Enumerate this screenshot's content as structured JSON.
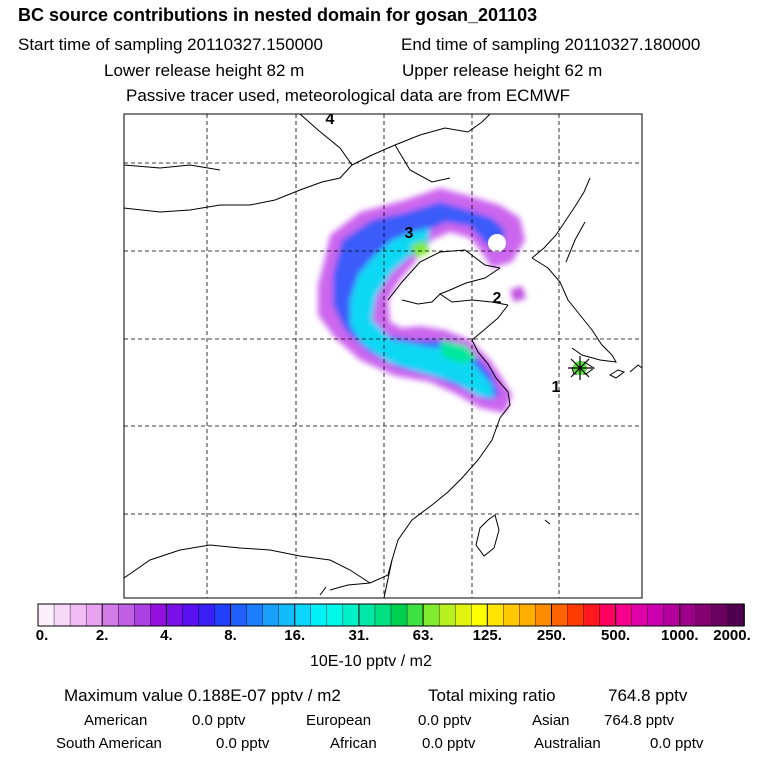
{
  "header": {
    "title": "BC  source contributions in nested domain for gosan_201103",
    "start_label": "Start time of sampling 20110327.150000",
    "end_label": "End time of sampling 20110327.180000",
    "lower_label": "Lower release height   82 m",
    "upper_label": "Upper release height   62 m",
    "tracer_note": "Passive tracer used, meteorological data are from ECMWF"
  },
  "map": {
    "track_labels": [
      "1",
      "2",
      "3",
      "4"
    ],
    "receptor_marker": "asterisk-star"
  },
  "colorbar": {
    "ticks": [
      "0.",
      "2.",
      "4.",
      "8.",
      "16.",
      "31.",
      "63.",
      "125.",
      "250.",
      "500.",
      "1000.",
      "2000."
    ],
    "colors": [
      "#fcf0fc",
      "#f6d8f8",
      "#f0bef4",
      "#e8a2f0",
      "#d27ce8",
      "#c060e4",
      "#ac40e2",
      "#9410e0",
      "#7a10e8",
      "#5a10f0",
      "#3a20f6",
      "#2040fa",
      "#2060fc",
      "#1c7efc",
      "#18a0fc",
      "#12bcfc",
      "#0cd6fc",
      "#00f0f8",
      "#00f8e8",
      "#00f0c8",
      "#00e8a8",
      "#00e080",
      "#00d050",
      "#40e040",
      "#80ec30",
      "#b8f020",
      "#e0f410",
      "#ffff00",
      "#ffe400",
      "#ffc800",
      "#ffae00",
      "#ff8c00",
      "#ff6400",
      "#ff3c00",
      "#ff1820",
      "#ff0060",
      "#f4008c",
      "#e000a8",
      "#cc00b0",
      "#b4009c",
      "#9c0088",
      "#840070",
      "#6a0060",
      "#500050"
    ],
    "unit": "10E-10 pptv / m2"
  },
  "summary": {
    "maximum": "Maximum value  0.188E-07 pptv / m2",
    "total_label": "Total mixing ratio",
    "total_value": "764.8 pptv",
    "sources": [
      {
        "name": "American",
        "value": "0.0 pptv"
      },
      {
        "name": "European",
        "value": "0.0 pptv"
      },
      {
        "name": "Asian",
        "value": "764.8 pptv"
      },
      {
        "name": "South American",
        "value": "0.0 pptv"
      },
      {
        "name": "African",
        "value": "0.0 pptv"
      },
      {
        "name": "Australian",
        "value": "0.0 pptv"
      }
    ]
  }
}
